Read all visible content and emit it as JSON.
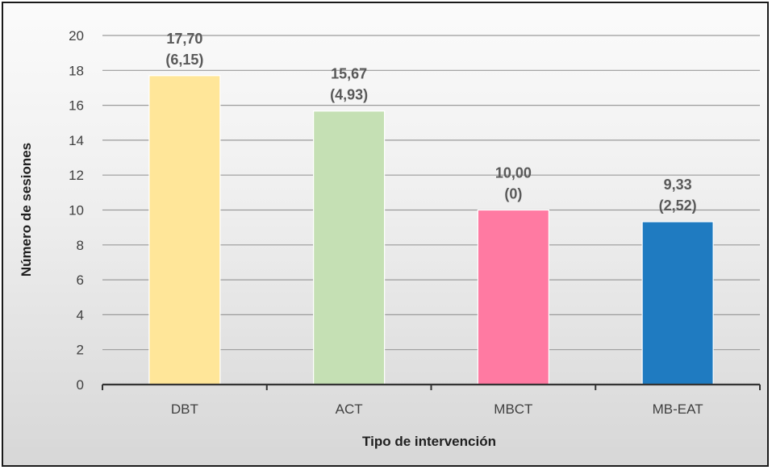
{
  "chart_data": {
    "type": "bar",
    "title": "",
    "xlabel": "Tipo de intervención",
    "ylabel": "Número de sesiones",
    "categories": [
      "DBT",
      "ACT",
      "MBCT",
      "MB-EAT"
    ],
    "values": [
      17.7,
      15.67,
      10.0,
      9.33
    ],
    "value_labels": [
      "17,70",
      "15,67",
      "10,00",
      "9,33"
    ],
    "sd_labels": [
      "(6,15)",
      "(4,93)",
      "(0)",
      "(2,52)"
    ],
    "colors": [
      "#ffe699",
      "#c5e0b4",
      "#ff7aa2",
      "#1f7bc1"
    ],
    "ylim": [
      0,
      20
    ],
    "yticks": [
      "0",
      "2",
      "4",
      "6",
      "8",
      "10",
      "12",
      "14",
      "16",
      "18",
      "20"
    ],
    "grid": true,
    "legend": "none"
  }
}
